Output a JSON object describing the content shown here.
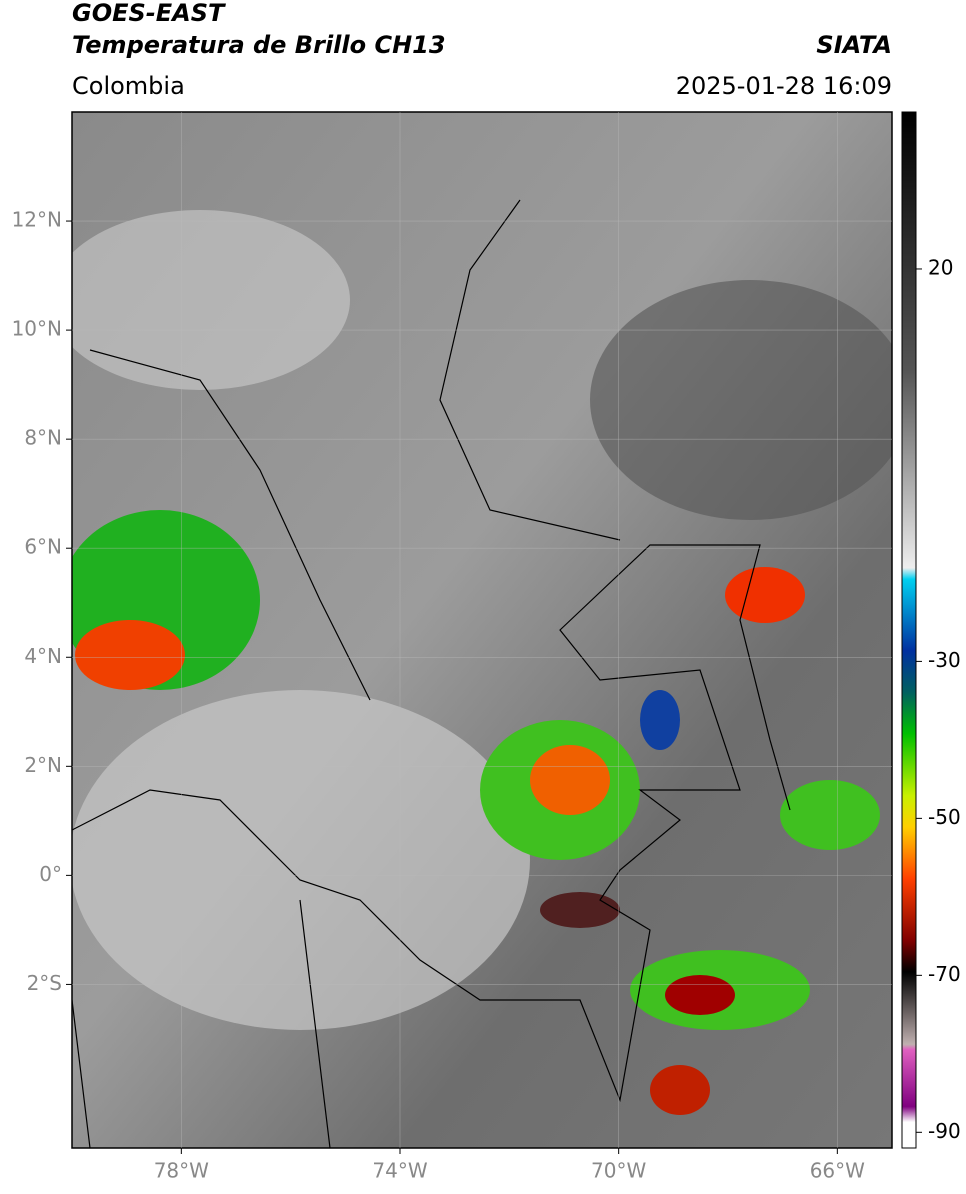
{
  "header": {
    "title": "GOES-EAST",
    "subtitle": "Temperatura de Brillo CH13",
    "source": "SIATA",
    "region": "Colombia",
    "datetime": "2025-01-28 16:09"
  },
  "map": {
    "xlim": [
      -80,
      -65
    ],
    "ylim": [
      -5,
      14
    ],
    "xticks": [
      {
        "value": -78,
        "label": "78°W"
      },
      {
        "value": -74,
        "label": "74°W"
      },
      {
        "value": -70,
        "label": "70°W"
      },
      {
        "value": -66,
        "label": "66°W"
      }
    ],
    "yticks": [
      {
        "value": 12,
        "label": "12°N"
      },
      {
        "value": 10,
        "label": "10°N"
      },
      {
        "value": 8,
        "label": "8°N"
      },
      {
        "value": 6,
        "label": "6°N"
      },
      {
        "value": 4,
        "label": "4°N"
      },
      {
        "value": 2,
        "label": "2°N"
      },
      {
        "value": 0,
        "label": "0°"
      },
      {
        "value": -2,
        "label": "2°S"
      }
    ]
  },
  "colorbar": {
    "lim": [
      40,
      -92
    ],
    "ticks": [
      20,
      -30,
      -50,
      -70,
      -90
    ]
  }
}
